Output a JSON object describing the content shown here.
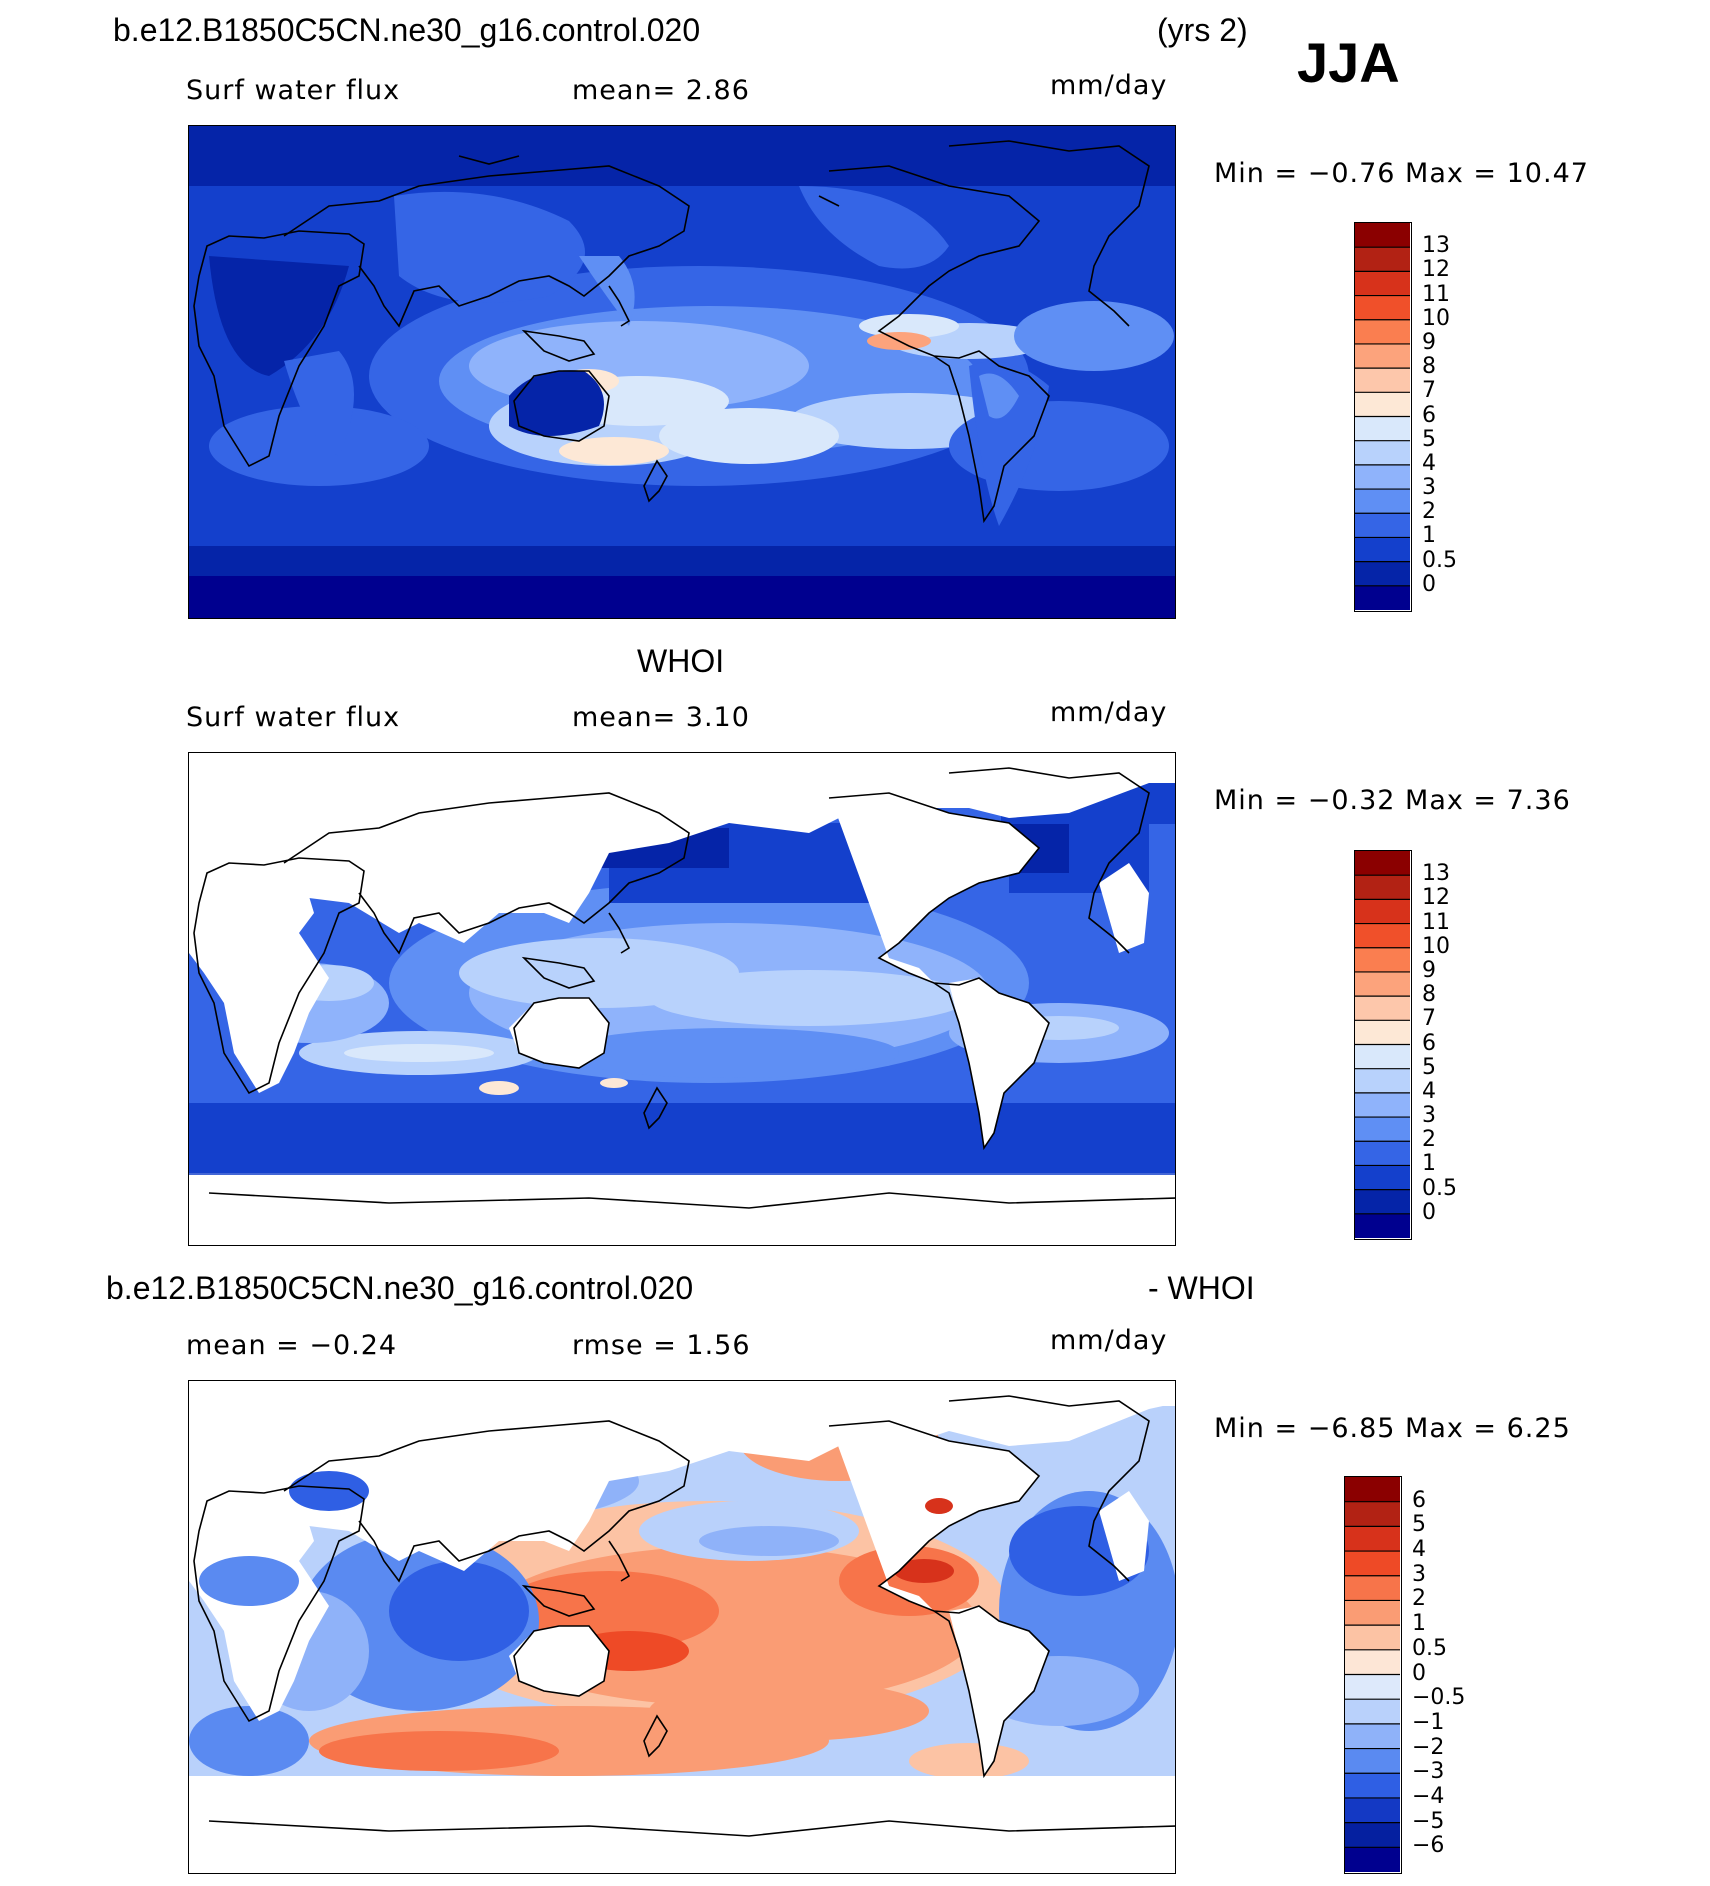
{
  "header": {
    "case_name": "b.e12.B1850C5CN.ne30_g16.control.020",
    "years": "(yrs 2)",
    "season": "JJA"
  },
  "colors": {
    "ocean_deep": "#00008f",
    "blue": "#2a5bdc",
    "light_blue": "#9ec1ff",
    "pale": "#f5e6d8",
    "orange": "#f5734a",
    "dark_red": "#8b0000",
    "land": "#ffffff",
    "coast": "#000000"
  },
  "panels": [
    {
      "title": "",
      "left_label": "Surf water flux",
      "center_label": "mean=   2.86",
      "units": "mm/day",
      "minmax": "Min =   −0.76 Max =   10.47",
      "colorbar_labels": [
        "13",
        "12",
        "11",
        "10",
        "9",
        "8",
        "7",
        "6",
        "5",
        "4",
        "3",
        "2",
        "1",
        "0.5",
        "0"
      ],
      "colorbar_colors": [
        "#8b0000",
        "#b22214",
        "#d7321b",
        "#f0502a",
        "#fa7e50",
        "#fca37c",
        "#fdc7ab",
        "#fde8d6",
        "#d9e8fb",
        "#b8d2fc",
        "#8fb3fb",
        "#5f8ff4",
        "#3565e6",
        "#1440cc",
        "#0524a8",
        "#00008f"
      ]
    },
    {
      "title": "WHOI",
      "left_label": "Surf water flux",
      "center_label": "mean=   3.10",
      "units": "mm/day",
      "minmax": "Min =   −0.32 Max =    7.36",
      "colorbar_labels": [
        "13",
        "12",
        "11",
        "10",
        "9",
        "8",
        "7",
        "6",
        "5",
        "4",
        "3",
        "2",
        "1",
        "0.5",
        "0"
      ],
      "colorbar_colors": [
        "#8b0000",
        "#b22214",
        "#d7321b",
        "#f0502a",
        "#fa7e50",
        "#fca37c",
        "#fdc7ab",
        "#fde8d6",
        "#d9e8fb",
        "#b8d2fc",
        "#8fb3fb",
        "#5f8ff4",
        "#3565e6",
        "#1440cc",
        "#0524a8",
        "#00008f"
      ]
    },
    {
      "title_left": "b.e12.B1850C5CN.ne30_g16.control.020",
      "title_right": "- WHOI",
      "left_label": "mean =   −0.24",
      "center_label": "rmse =    1.56",
      "units": "mm/day",
      "minmax": "Min =   −6.85 Max =    6.25",
      "colorbar_labels": [
        "6",
        "5",
        "4",
        "3",
        "2",
        "1",
        "0.5",
        "0",
        "−0.5",
        "−1",
        "−2",
        "−3",
        "−4",
        "−5",
        "−6"
      ],
      "colorbar_colors": [
        "#8b0000",
        "#b22214",
        "#d7321b",
        "#ee4a26",
        "#f7744a",
        "#fa9c74",
        "#fcc3a4",
        "#fde6d6",
        "#dde9fb",
        "#b9d1fb",
        "#8fb2f9",
        "#5a8af1",
        "#2f5fe4",
        "#1439c4",
        "#0520a0",
        "#00008f"
      ]
    }
  ]
}
